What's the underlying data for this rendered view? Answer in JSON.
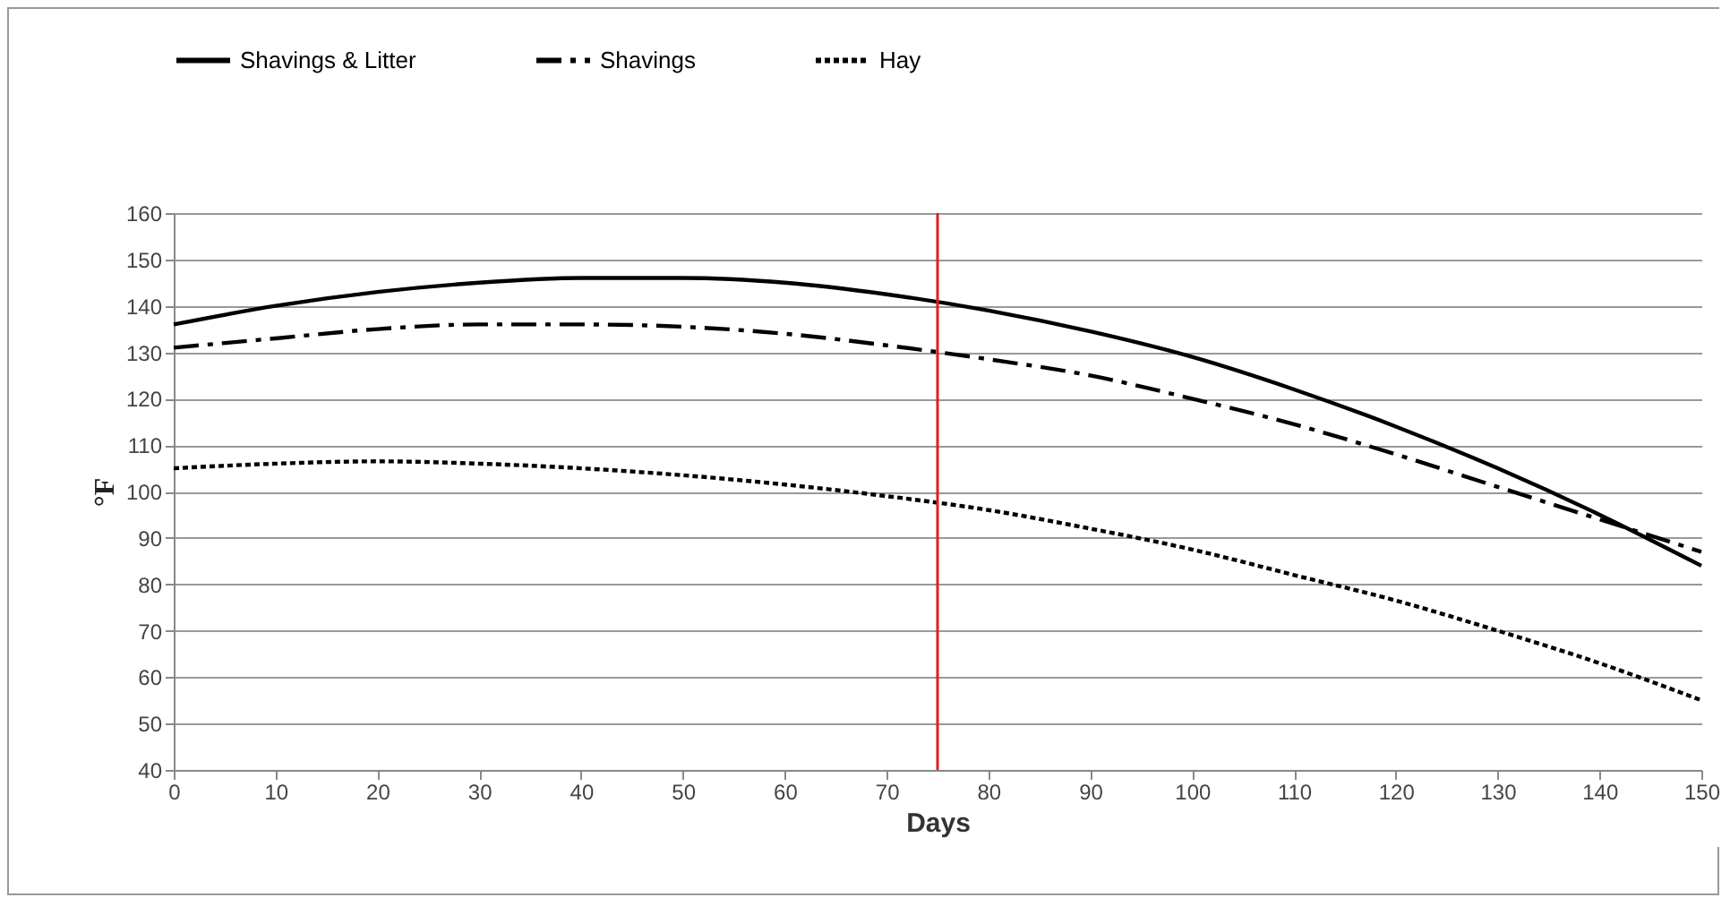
{
  "chart_data": {
    "type": "line",
    "xlabel": "Days",
    "ylabel": "°F",
    "x": [
      0,
      10,
      20,
      30,
      40,
      50,
      60,
      70,
      80,
      90,
      100,
      110,
      120,
      130,
      140,
      150
    ],
    "series": [
      {
        "name": "Shavings & Litter",
        "color": "#000000",
        "line_style": "solid",
        "values": [
          136,
          140,
          143,
          145,
          146,
          146,
          145,
          142.5,
          139,
          134.5,
          129,
          122,
          114,
          105,
          95,
          84
        ]
      },
      {
        "name": "Shavings",
        "color": "#000000",
        "line_style": "dashed",
        "values": [
          131,
          133,
          135,
          136,
          136,
          135.5,
          134,
          131.5,
          128.5,
          125,
          120,
          114.5,
          108,
          101,
          94,
          87
        ]
      },
      {
        "name": "Hay",
        "color": "#000000",
        "line_style": "dotted",
        "values": [
          105,
          106,
          106.5,
          106,
          105,
          103.5,
          101.5,
          99,
          96,
          92,
          87.5,
          82,
          76.5,
          70,
          63,
          55
        ]
      }
    ],
    "xlim": [
      0,
      150
    ],
    "xticks": [
      0,
      10,
      20,
      30,
      40,
      50,
      60,
      70,
      80,
      90,
      100,
      110,
      120,
      130,
      140,
      150
    ],
    "ylim": [
      40,
      160
    ],
    "yticks": [
      40,
      50,
      60,
      70,
      80,
      90,
      100,
      110,
      120,
      130,
      140,
      150,
      160
    ],
    "grid": "y",
    "legend": "top",
    "marker": "none",
    "ref_lines": [
      {
        "axis": "x",
        "value": 75,
        "color": "#e02020"
      }
    ]
  }
}
